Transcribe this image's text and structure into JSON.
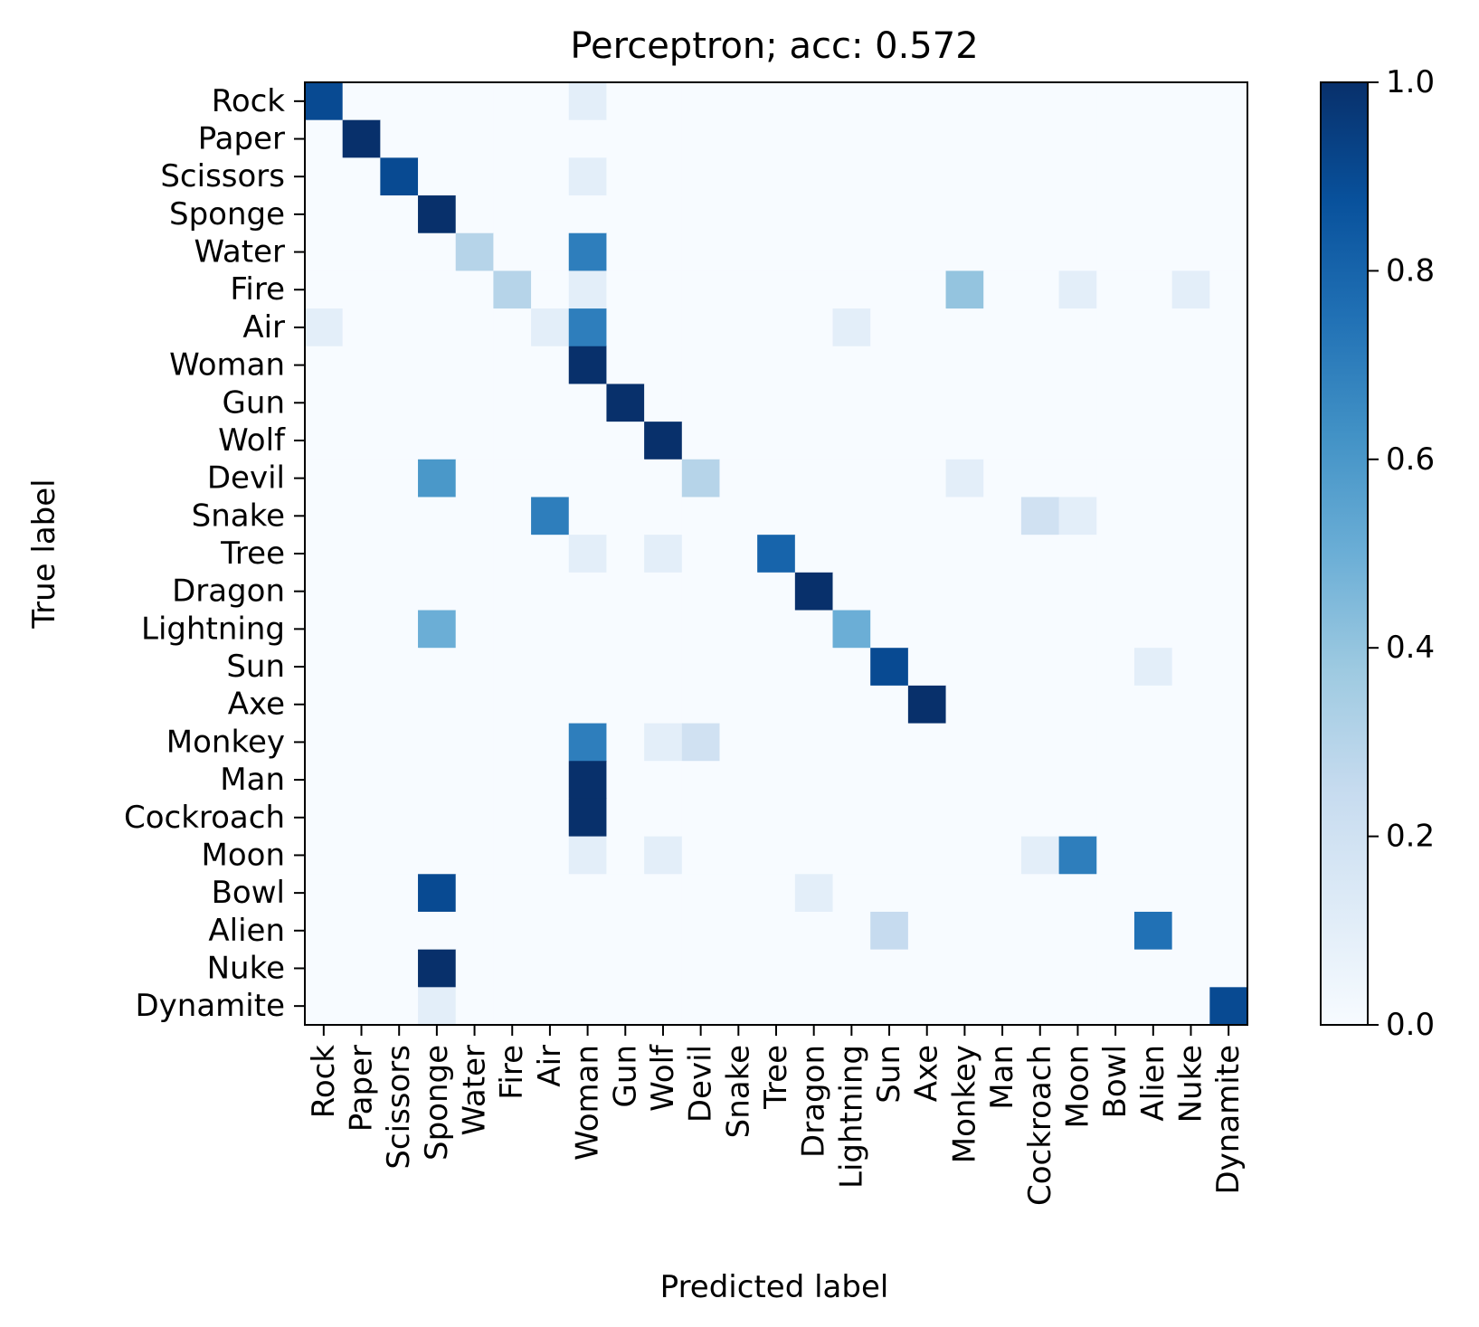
{
  "chart_data": {
    "type": "heatmap",
    "title": "Perceptron; acc: 0.572",
    "xlabel": "Predicted label",
    "ylabel": "True label",
    "labels": [
      "Rock",
      "Paper",
      "Scissors",
      "Sponge",
      "Water",
      "Fire",
      "Air",
      "Woman",
      "Gun",
      "Wolf",
      "Devil",
      "Snake",
      "Tree",
      "Dragon",
      "Lightning",
      "Sun",
      "Axe",
      "Monkey",
      "Man",
      "Cockroach",
      "Moon",
      "Bowl",
      "Alien",
      "Nuke",
      "Dynamite"
    ],
    "colorbar": {
      "ticks": [
        "0.0",
        "0.2",
        "0.4",
        "0.6",
        "0.8",
        "1.0"
      ],
      "range": [
        0,
        1
      ],
      "colormap": "Blues"
    },
    "matrix": [
      [
        0.9,
        0,
        0,
        0,
        0,
        0,
        0,
        0.1,
        0,
        0,
        0,
        0,
        0,
        0,
        0,
        0,
        0,
        0,
        0,
        0,
        0,
        0,
        0,
        0,
        0
      ],
      [
        0,
        1.0,
        0,
        0,
        0,
        0,
        0,
        0,
        0,
        0,
        0,
        0,
        0,
        0,
        0,
        0,
        0,
        0,
        0,
        0,
        0,
        0,
        0,
        0,
        0
      ],
      [
        0,
        0,
        0.9,
        0,
        0,
        0,
        0,
        0.1,
        0,
        0,
        0,
        0,
        0,
        0,
        0,
        0,
        0,
        0,
        0,
        0,
        0,
        0,
        0,
        0,
        0
      ],
      [
        0,
        0,
        0,
        1.0,
        0,
        0,
        0,
        0,
        0,
        0,
        0,
        0,
        0,
        0,
        0,
        0,
        0,
        0,
        0,
        0,
        0,
        0,
        0,
        0,
        0
      ],
      [
        0,
        0,
        0,
        0,
        0.3,
        0,
        0,
        0.7,
        0,
        0,
        0,
        0,
        0,
        0,
        0,
        0,
        0,
        0,
        0,
        0,
        0,
        0,
        0,
        0,
        0
      ],
      [
        0,
        0,
        0,
        0,
        0,
        0.3,
        0,
        0.1,
        0,
        0,
        0,
        0,
        0,
        0,
        0,
        0,
        0,
        0.4,
        0,
        0,
        0.1,
        0,
        0,
        0.1,
        0
      ],
      [
        0.1,
        0,
        0,
        0,
        0,
        0,
        0.1,
        0.7,
        0,
        0,
        0,
        0,
        0,
        0,
        0.1,
        0,
        0,
        0,
        0,
        0,
        0,
        0,
        0,
        0,
        0
      ],
      [
        0,
        0,
        0,
        0,
        0,
        0,
        0,
        1.0,
        0,
        0,
        0,
        0,
        0,
        0,
        0,
        0,
        0,
        0,
        0,
        0,
        0,
        0,
        0,
        0,
        0
      ],
      [
        0,
        0,
        0,
        0,
        0,
        0,
        0,
        0,
        1.0,
        0,
        0,
        0,
        0,
        0,
        0,
        0,
        0,
        0,
        0,
        0,
        0,
        0,
        0,
        0,
        0
      ],
      [
        0,
        0,
        0,
        0,
        0,
        0,
        0,
        0,
        0,
        1.0,
        0,
        0,
        0,
        0,
        0,
        0,
        0,
        0,
        0,
        0,
        0,
        0,
        0,
        0,
        0
      ],
      [
        0,
        0,
        0,
        0.6,
        0,
        0,
        0,
        0,
        0,
        0,
        0.3,
        0,
        0,
        0,
        0,
        0,
        0,
        0.1,
        0,
        0,
        0,
        0,
        0,
        0,
        0
      ],
      [
        0,
        0,
        0,
        0,
        0,
        0,
        0.7,
        0,
        0,
        0,
        0,
        0,
        0,
        0,
        0,
        0,
        0,
        0,
        0,
        0.2,
        0.1,
        0,
        0,
        0,
        0
      ],
      [
        0,
        0,
        0,
        0,
        0,
        0,
        0,
        0.1,
        0,
        0.1,
        0,
        0,
        0.8,
        0,
        0,
        0,
        0,
        0,
        0,
        0,
        0,
        0,
        0,
        0,
        0
      ],
      [
        0,
        0,
        0,
        0,
        0,
        0,
        0,
        0,
        0,
        0,
        0,
        0,
        0,
        1.0,
        0,
        0,
        0,
        0,
        0,
        0,
        0,
        0,
        0,
        0,
        0
      ],
      [
        0,
        0,
        0,
        0.5,
        0,
        0,
        0,
        0,
        0,
        0,
        0,
        0,
        0,
        0,
        0.5,
        0,
        0,
        0,
        0,
        0,
        0,
        0,
        0,
        0,
        0
      ],
      [
        0,
        0,
        0,
        0,
        0,
        0,
        0,
        0,
        0,
        0,
        0,
        0,
        0,
        0,
        0,
        0.9,
        0,
        0,
        0,
        0,
        0,
        0,
        0.1,
        0,
        0
      ],
      [
        0,
        0,
        0,
        0,
        0,
        0,
        0,
        0,
        0,
        0,
        0,
        0,
        0,
        0,
        0,
        0,
        1.0,
        0,
        0,
        0,
        0,
        0,
        0,
        0,
        0
      ],
      [
        0,
        0,
        0,
        0,
        0,
        0,
        0,
        0.7,
        0,
        0.1,
        0.2,
        0,
        0,
        0,
        0,
        0,
        0,
        0,
        0,
        0,
        0,
        0,
        0,
        0,
        0
      ],
      [
        0,
        0,
        0,
        0,
        0,
        0,
        0,
        1.0,
        0,
        0,
        0,
        0,
        0,
        0,
        0,
        0,
        0,
        0,
        0,
        0,
        0,
        0,
        0,
        0,
        0
      ],
      [
        0,
        0,
        0,
        0,
        0,
        0,
        0,
        1.0,
        0,
        0,
        0,
        0,
        0,
        0,
        0,
        0,
        0,
        0,
        0,
        0,
        0,
        0,
        0,
        0,
        0
      ],
      [
        0,
        0,
        0,
        0,
        0,
        0,
        0,
        0.1,
        0,
        0.1,
        0,
        0,
        0,
        0,
        0,
        0,
        0,
        0,
        0,
        0.1,
        0.7,
        0,
        0,
        0,
        0
      ],
      [
        0,
        0,
        0,
        0.9,
        0,
        0,
        0,
        0,
        0,
        0,
        0,
        0,
        0,
        0.1,
        0,
        0,
        0,
        0,
        0,
        0,
        0,
        0,
        0,
        0,
        0
      ],
      [
        0,
        0,
        0,
        0,
        0,
        0,
        0,
        0,
        0,
        0,
        0,
        0,
        0,
        0,
        0,
        0.25,
        0,
        0,
        0,
        0,
        0,
        0,
        0.75,
        0,
        0
      ],
      [
        0,
        0,
        0,
        1.0,
        0,
        0,
        0,
        0,
        0,
        0,
        0,
        0,
        0,
        0,
        0,
        0,
        0,
        0,
        0,
        0,
        0,
        0,
        0,
        0,
        0
      ],
      [
        0,
        0,
        0,
        0.1,
        0,
        0,
        0,
        0,
        0,
        0,
        0,
        0,
        0,
        0,
        0,
        0,
        0,
        0,
        0,
        0,
        0,
        0,
        0,
        0,
        0.9
      ]
    ]
  }
}
